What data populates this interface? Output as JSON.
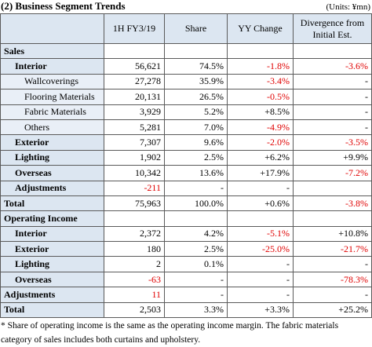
{
  "header": {
    "title": "(2) Business Segment Trends",
    "units": "(Units: ¥mn)"
  },
  "table": {
    "columns": [
      "1H FY3/19",
      "Share",
      "YY Change",
      "Divergence from Initial Est."
    ],
    "rows": [
      [
        "Sales"
      ],
      [
        "Interior",
        "56,621",
        "74.5%",
        "-1.8%",
        "-3.6%"
      ],
      [
        "Wallcoverings",
        "27,278",
        "35.9%",
        "-3.4%",
        "-"
      ],
      [
        "Flooring Materials",
        "20,131",
        "26.5%",
        "-0.5%",
        "-"
      ],
      [
        "Fabric Materials",
        "3,929",
        "5.2%",
        "+8.5%",
        "-"
      ],
      [
        "Others",
        "5,281",
        "7.0%",
        "-4.9%",
        "-"
      ],
      [
        "Exterior",
        "7,307",
        "9.6%",
        "-2.0%",
        "-3.5%"
      ],
      [
        "Lighting",
        "1,902",
        "2.5%",
        "+6.2%",
        "+9.9%"
      ],
      [
        "Overseas",
        "10,342",
        "13.6%",
        "+17.9%",
        "-7.2%"
      ],
      [
        "Adjustments",
        "-211",
        "-",
        "-"
      ],
      [
        "Total",
        "75,963",
        "100.0%",
        "+0.6%",
        "-3.8%"
      ],
      [
        "Operating Income"
      ],
      [
        "Interior",
        "2,372",
        "4.2%",
        "-5.1%",
        "+10.8%"
      ],
      [
        "Exterior",
        "180",
        "2.5%",
        "-25.0%",
        "-21.7%"
      ],
      [
        "Lighting",
        "2",
        "0.1%",
        "-",
        "-"
      ],
      [
        "Overseas",
        "-63",
        "-",
        "-",
        "-78.3%"
      ],
      [
        "Adjustments",
        "11",
        "-",
        "-",
        "-"
      ],
      [
        "Total",
        "2,503",
        "3.3%",
        "+3.3%",
        "+25.2%"
      ]
    ]
  },
  "footnote": "* Share of operating income is the same as the operating income margin. The fabric materials category of sales includes both curtains and upholstery."
}
